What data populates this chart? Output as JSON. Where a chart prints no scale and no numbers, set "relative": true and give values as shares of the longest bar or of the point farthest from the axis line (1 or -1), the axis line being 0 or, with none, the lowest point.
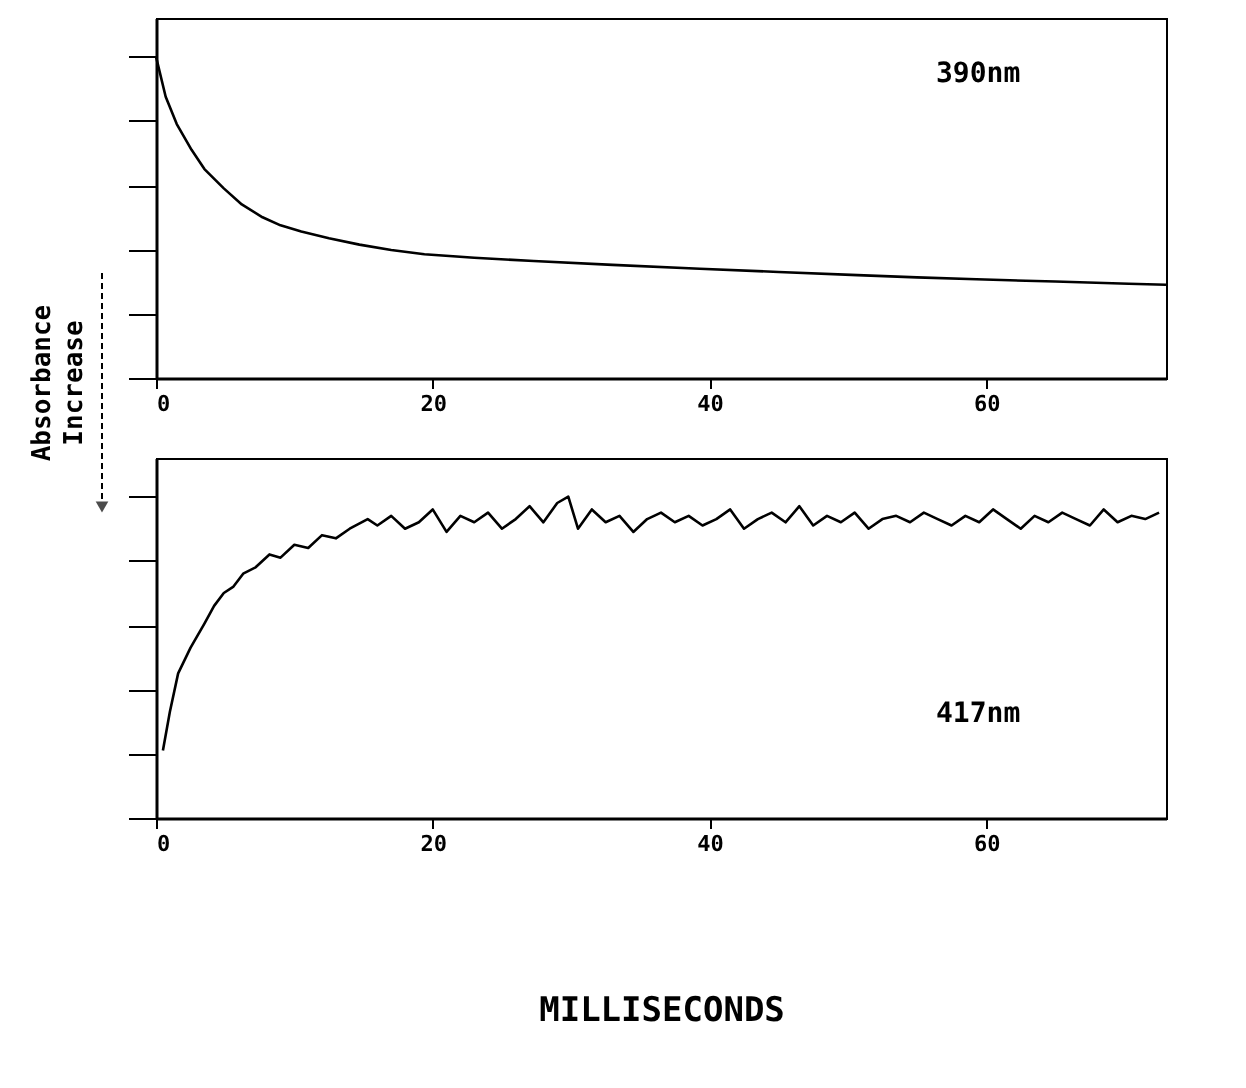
{
  "chart_data": [
    {
      "type": "line",
      "relative": true,
      "ylabel": "Absorbance\nIncrease",
      "xlim": [
        0,
        73
      ],
      "xticks": [
        0,
        20,
        40,
        60
      ],
      "grid": false,
      "series": [
        {
          "name": "390nm",
          "color": "#000000",
          "x": [
            0,
            0.7,
            1.5,
            2.57,
            3.5,
            4.9,
            6.2,
            7.7,
            9,
            10.5,
            12.5,
            14.7,
            17,
            19.4,
            23,
            27.3,
            33,
            39.3,
            45,
            50.7,
            55,
            59.3,
            65,
            70.3,
            73
          ],
          "values": [
            1,
            0.875,
            0.79,
            0.71,
            0.65,
            0.59,
            0.54,
            0.5,
            0.475,
            0.456,
            0.435,
            0.415,
            0.398,
            0.385,
            0.374,
            0.364,
            0.352,
            0.34,
            0.33,
            0.32,
            0.313,
            0.307,
            0.3,
            0.293,
            0.29
          ]
        }
      ]
    },
    {
      "type": "line",
      "relative": true,
      "xlabel": "MILLISECONDS",
      "xlim": [
        0,
        73
      ],
      "xticks": [
        0,
        20,
        40,
        60
      ],
      "grid": false,
      "series": [
        {
          "name": "417nm",
          "color": "#000000",
          "x": [
            0.5,
            1,
            1.6,
            2.5,
            3.5,
            4.2,
            4.9,
            5.6,
            6.3,
            7.2,
            8.2,
            9,
            10,
            11,
            12,
            13,
            14,
            15.3,
            16,
            17,
            18,
            19,
            20,
            21,
            22,
            23,
            24,
            25,
            26,
            27,
            28,
            29,
            29.8,
            30.5,
            31.5,
            32.5,
            33.5,
            34.5,
            35.5,
            36.5,
            37.5,
            38.5,
            39.5,
            40.5,
            41.5,
            42.5,
            43.5,
            44.5,
            45.5,
            46.5,
            47.5,
            48.5,
            49.5,
            50.5,
            51.5,
            52.5,
            53.5,
            54.5,
            55.5,
            56.5,
            57.5,
            58.5,
            59.5,
            60.5,
            61.5,
            62.5,
            63.5,
            64.5,
            65.5,
            66.5,
            67.5,
            68.5,
            69.5,
            70.5,
            71.5,
            72.5
          ],
          "values": [
            0.21,
            0.33,
            0.45,
            0.53,
            0.605,
            0.66,
            0.7,
            0.72,
            0.76,
            0.78,
            0.82,
            0.81,
            0.85,
            0.84,
            0.88,
            0.87,
            0.9,
            0.93,
            0.91,
            0.94,
            0.9,
            0.92,
            0.96,
            0.89,
            0.94,
            0.92,
            0.95,
            0.9,
            0.93,
            0.97,
            0.92,
            0.98,
            1.0,
            0.9,
            0.96,
            0.92,
            0.94,
            0.89,
            0.93,
            0.95,
            0.92,
            0.94,
            0.91,
            0.93,
            0.96,
            0.9,
            0.93,
            0.95,
            0.92,
            0.97,
            0.91,
            0.94,
            0.92,
            0.95,
            0.9,
            0.93,
            0.94,
            0.92,
            0.95,
            0.93,
            0.91,
            0.94,
            0.92,
            0.96,
            0.93,
            0.9,
            0.94,
            0.92,
            0.95,
            0.93,
            0.91,
            0.96,
            0.92,
            0.94,
            0.93,
            0.95
          ]
        }
      ]
    }
  ]
}
